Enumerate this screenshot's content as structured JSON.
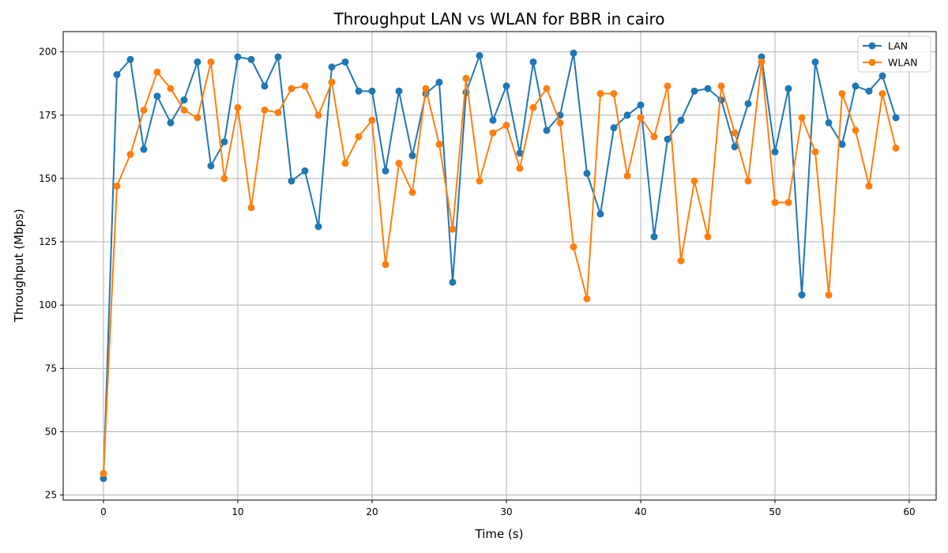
{
  "chart_data": {
    "type": "line",
    "title": "Throughput LAN vs WLAN for BBR in cairo",
    "xlabel": "Time (s)",
    "ylabel": "Throughput (Mbps)",
    "xlim": [
      -3,
      62
    ],
    "ylim": [
      23,
      208
    ],
    "xticks": [
      0,
      10,
      20,
      30,
      40,
      50,
      60
    ],
    "yticks": [
      25,
      50,
      75,
      100,
      125,
      150,
      175,
      200
    ],
    "grid": true,
    "legend_position": "top-right",
    "x": [
      0,
      1,
      2,
      3,
      4,
      5,
      6,
      7,
      8,
      9,
      10,
      11,
      12,
      13,
      14,
      15,
      16,
      17,
      18,
      19,
      20,
      21,
      22,
      23,
      24,
      25,
      26,
      27,
      28,
      29,
      30,
      31,
      32,
      33,
      34,
      35,
      36,
      37,
      38,
      39,
      40,
      41,
      42,
      43,
      44,
      45,
      46,
      47,
      48,
      49,
      50,
      51,
      52,
      53,
      54,
      55,
      56,
      57,
      58,
      59
    ],
    "series": [
      {
        "name": "LAN",
        "color": "#1f77b4",
        "values": [
          31.5,
          191,
          197,
          161.5,
          182.5,
          172,
          181,
          196,
          155,
          164.5,
          198,
          197,
          186.5,
          198,
          149,
          153,
          131,
          194,
          196,
          184.5,
          184.5,
          153,
          184.5,
          159,
          183.5,
          188,
          109,
          184,
          198.5,
          173,
          186.5,
          160,
          196,
          169,
          175,
          199.5,
          152,
          136,
          170,
          175,
          179,
          127,
          165.5,
          173,
          184.5,
          185.5,
          181,
          162.5,
          179.5,
          198,
          160.5,
          185.5,
          104,
          196,
          172,
          163.5,
          186.5,
          184.5,
          190.5,
          174
        ]
      },
      {
        "name": "WLAN",
        "color": "#ff7f0e",
        "values": [
          33.5,
          147,
          159.5,
          177,
          192,
          185.5,
          177,
          174,
          196,
          150,
          178,
          138.5,
          177,
          176,
          185.5,
          186.5,
          175,
          188,
          156,
          166.5,
          173,
          116,
          156,
          144.5,
          185.5,
          163.5,
          130,
          189.5,
          149,
          168,
          171,
          154,
          178,
          185.5,
          172,
          123,
          102.5,
          183.5,
          183.5,
          151,
          174,
          166.5,
          186.5,
          117.5,
          149,
          127,
          186.5,
          168,
          149,
          196,
          140.5,
          140.5,
          174,
          160.5,
          104,
          183.5,
          169,
          147,
          183.5,
          162
        ]
      }
    ]
  }
}
